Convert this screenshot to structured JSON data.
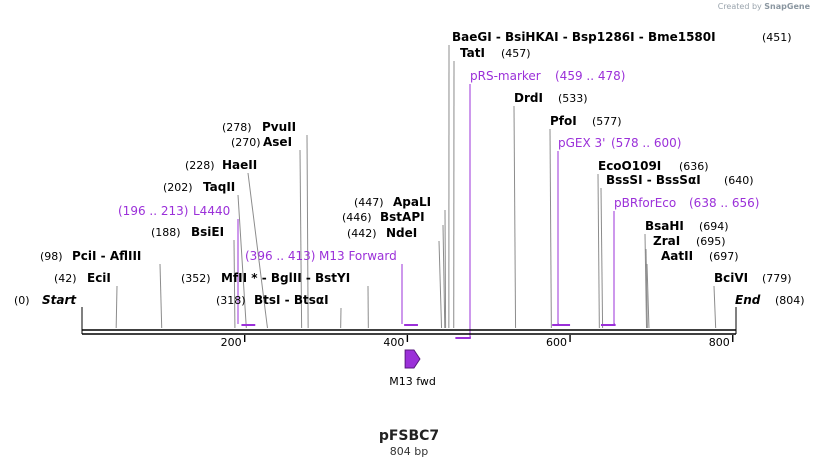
{
  "credit": {
    "prefix": "Created by",
    "brand": "SnapGene"
  },
  "map": {
    "title": "pFSBC7",
    "length_label": "804 bp",
    "length": 804,
    "accent_color": "#9b30d9",
    "ruler_ticks": [
      "200",
      "400",
      "600",
      "800"
    ],
    "sites": [
      {
        "name": "Start",
        "pos_text": "(0)",
        "pos": 0,
        "italic": true
      },
      {
        "name": "EciI",
        "pos_text": "(42)",
        "pos": 42
      },
      {
        "name": "PciI  -  AflIII",
        "pos_text": "(98)",
        "pos": 98
      },
      {
        "name": "BsiEI",
        "pos_text": "(188)",
        "pos": 188
      },
      {
        "name": "TaqII",
        "pos_text": "(202)",
        "pos": 202
      },
      {
        "name": "HaeII",
        "pos_text": "(228)",
        "pos": 228
      },
      {
        "name": "AseI",
        "pos_text": "(270)",
        "pos": 270
      },
      {
        "name": "PvuII",
        "pos_text": "(278)",
        "pos": 278
      },
      {
        "name": "BtsI  -  BtsαI",
        "pos_text": "(318)",
        "pos": 318
      },
      {
        "name": "MfII *  -  BglII  -  BstYI",
        "pos_text": "(352)",
        "pos": 352
      },
      {
        "name": "NdeI",
        "pos_text": "(442)",
        "pos": 442
      },
      {
        "name": "BstAPI",
        "pos_text": "(446)",
        "pos": 446
      },
      {
        "name": "ApaLI",
        "pos_text": "(447)",
        "pos": 447
      },
      {
        "name": "BaeGI  -  BsiHKAI  -  Bsp1286I  -  Bme1580I",
        "pos_text": "(451)",
        "pos": 451
      },
      {
        "name": "TatI",
        "pos_text": "(457)",
        "pos": 457
      },
      {
        "name": "DrdI",
        "pos_text": "(533)",
        "pos": 533
      },
      {
        "name": "PfoI",
        "pos_text": "(577)",
        "pos": 577
      },
      {
        "name": "EcoO109I",
        "pos_text": "(636)",
        "pos": 636
      },
      {
        "name": "BssSI  -  BssSαI",
        "pos_text": "(640)",
        "pos": 640
      },
      {
        "name": "BsaHI",
        "pos_text": "(694)",
        "pos": 694
      },
      {
        "name": "ZraI",
        "pos_text": "(695)",
        "pos": 695
      },
      {
        "name": "AatII",
        "pos_text": "(697)",
        "pos": 697
      },
      {
        "name": "BciVI",
        "pos_text": "(779)",
        "pos": 779
      },
      {
        "name": "End",
        "pos_text": "(804)",
        "pos": 804,
        "italic": true
      }
    ],
    "primers": [
      {
        "name": "L4440",
        "range_text": "(196 .. 213)",
        "start": 196,
        "end": 213
      },
      {
        "name": "M13 Forward",
        "range_text": "(396 .. 413)",
        "start": 396,
        "end": 413
      },
      {
        "name": "pRS-marker",
        "range_text": "(459 .. 478)",
        "start": 459,
        "end": 478
      },
      {
        "name": "pGEX 3'",
        "range_text": "(578 .. 600)",
        "start": 578,
        "end": 600
      },
      {
        "name": "pBRforEco",
        "range_text": "(638 .. 656)",
        "start": 638,
        "end": 656
      }
    ],
    "features": [
      {
        "name": "M13 fwd",
        "start": 396,
        "end": 413,
        "direction": "forward"
      }
    ]
  }
}
